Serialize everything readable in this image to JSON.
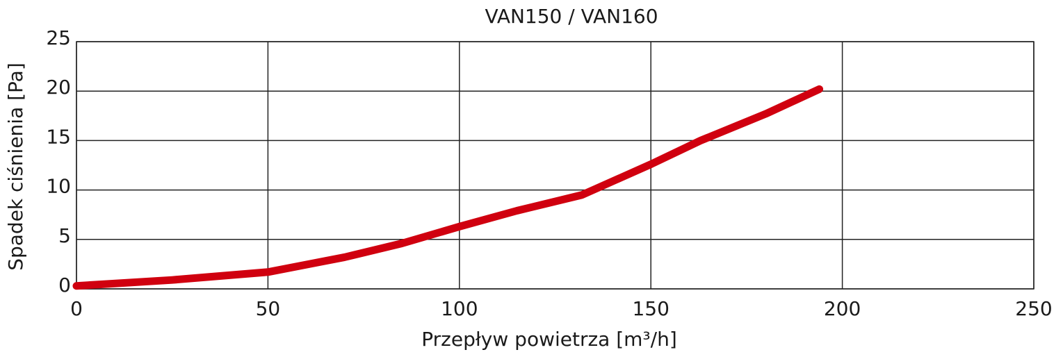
{
  "chart_data": {
    "type": "line",
    "title": "VAN150 / VAN160",
    "x_label": "Przepływ powietrza [m³/h]",
    "y_label": "Spadek ciśnienia [Pa]",
    "x": [
      0,
      25,
      50,
      70,
      85,
      100,
      115,
      132,
      150,
      163,
      180,
      194
    ],
    "series": [
      {
        "name": "VAN150 / VAN160",
        "color": "#d0000f",
        "values": [
          0.3,
          0.9,
          1.7,
          3.2,
          4.6,
          6.3,
          7.9,
          9.5,
          12.6,
          15,
          17.7,
          20.2
        ]
      }
    ],
    "xlim": [
      0,
      250
    ],
    "xticks": [
      0,
      50,
      100,
      150,
      200,
      250
    ],
    "ylim": [
      0,
      25
    ],
    "yticks": [
      0,
      5,
      10,
      15,
      20,
      25
    ],
    "grid": true
  }
}
